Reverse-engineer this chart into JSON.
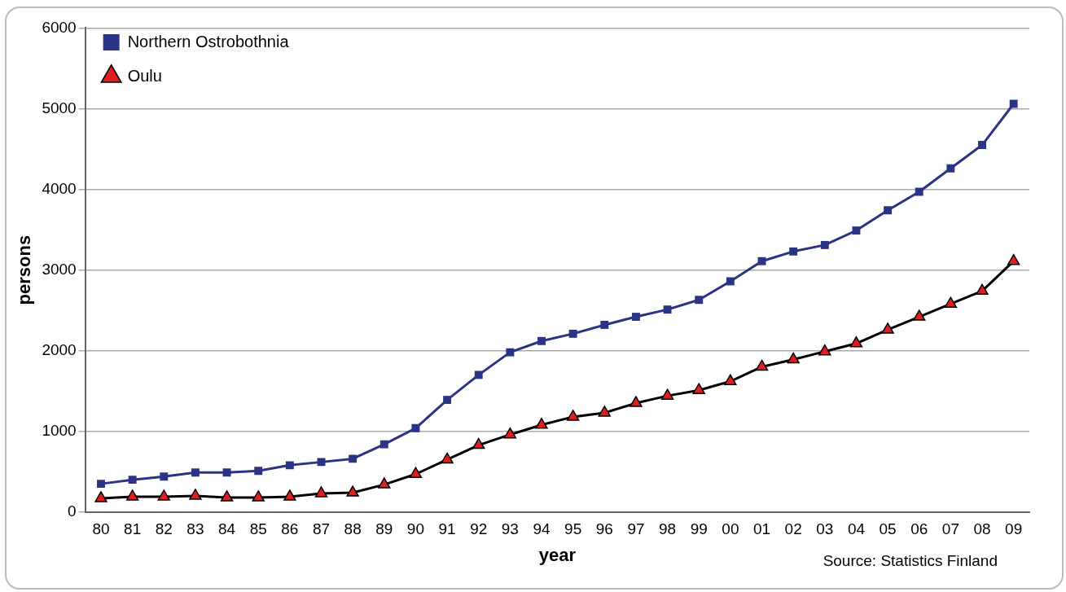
{
  "chart_data": {
    "type": "line",
    "xlabel": "year",
    "ylabel": "persons",
    "annotations": [
      "Source: Statistics Finland"
    ],
    "categories": [
      "80",
      "81",
      "82",
      "83",
      "84",
      "85",
      "86",
      "87",
      "88",
      "89",
      "90",
      "91",
      "92",
      "93",
      "94",
      "95",
      "96",
      "97",
      "98",
      "99",
      "00",
      "01",
      "02",
      "03",
      "04",
      "05",
      "06",
      "07",
      "08",
      "09"
    ],
    "series": [
      {
        "name": "Northern Ostrobothnia",
        "color": "#2a3384",
        "marker": "square",
        "values": [
          350,
          400,
          440,
          490,
          490,
          510,
          580,
          620,
          660,
          840,
          1040,
          1390,
          1700,
          1980,
          2120,
          2210,
          2320,
          2420,
          2510,
          2630,
          2860,
          3110,
          3230,
          3310,
          3490,
          3740,
          3970,
          4260,
          4550,
          5060
        ]
      },
      {
        "name": "Oulu",
        "color": "#000000",
        "marker": "triangle",
        "values": [
          170,
          190,
          190,
          200,
          180,
          180,
          190,
          230,
          240,
          340,
          470,
          650,
          830,
          960,
          1080,
          1180,
          1230,
          1350,
          1440,
          1510,
          1620,
          1800,
          1890,
          1990,
          2090,
          2260,
          2420,
          2580,
          2740,
          3110
        ]
      }
    ],
    "ylim": [
      0,
      6000
    ],
    "yticks": [
      0,
      1000,
      2000,
      3000,
      4000,
      5000,
      6000
    ],
    "grid": "y",
    "legend": "top left",
    "line_style": "solid"
  }
}
